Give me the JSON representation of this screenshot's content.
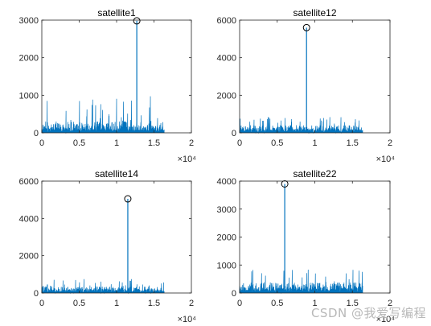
{
  "watermark": "CSDN @我爱写编程",
  "chart_data": [
    {
      "type": "line",
      "title": "satellite1",
      "xlim": [
        0,
        20000
      ],
      "ylim": [
        0,
        3000
      ],
      "xticks": [
        "0",
        "0.5",
        "1",
        "1.5",
        "2"
      ],
      "yticks": [
        "0",
        "1000",
        "2000",
        "3000"
      ],
      "x_exponent": "×10⁴",
      "grid": false,
      "n_points": 16368,
      "x_max": 16368,
      "noise_typical": 300,
      "noise_max": 1000,
      "peak": {
        "x": 12700,
        "y": 2980
      },
      "line_color": "#0072BD"
    },
    {
      "type": "line",
      "title": "satellite12",
      "xlim": [
        0,
        20000
      ],
      "ylim": [
        0,
        6000
      ],
      "xticks": [
        "0",
        "0.5",
        "1",
        "1.5",
        "2"
      ],
      "yticks": [
        "0",
        "2000",
        "4000",
        "6000"
      ],
      "x_exponent": "×10⁴",
      "grid": false,
      "n_points": 16368,
      "x_max": 16368,
      "noise_typical": 400,
      "noise_max": 900,
      "peak": {
        "x": 8900,
        "y": 5600
      },
      "line_color": "#0072BD"
    },
    {
      "type": "line",
      "title": "satellite14",
      "xlim": [
        0,
        20000
      ],
      "ylim": [
        0,
        6000
      ],
      "xticks": [
        "0",
        "0.5",
        "1",
        "1.5",
        "2"
      ],
      "yticks": [
        "0",
        "2000",
        "4000",
        "6000"
      ],
      "x_exponent": "×10⁴",
      "grid": false,
      "n_points": 16368,
      "x_max": 16368,
      "noise_typical": 350,
      "noise_max": 750,
      "peak": {
        "x": 11500,
        "y": 5050
      },
      "line_color": "#0072BD"
    },
    {
      "type": "line",
      "title": "satellite22",
      "xlim": [
        0,
        20000
      ],
      "ylim": [
        0,
        4000
      ],
      "xticks": [
        "0",
        "0.5",
        "1",
        "1.5",
        "2"
      ],
      "yticks": [
        "0",
        "1000",
        "2000",
        "3000",
        "4000"
      ],
      "x_exponent": "×10⁴",
      "grid": false,
      "n_points": 16368,
      "x_max": 16368,
      "noise_typical": 380,
      "noise_max": 850,
      "peak": {
        "x": 6000,
        "y": 3900
      },
      "line_color": "#0072BD"
    }
  ]
}
